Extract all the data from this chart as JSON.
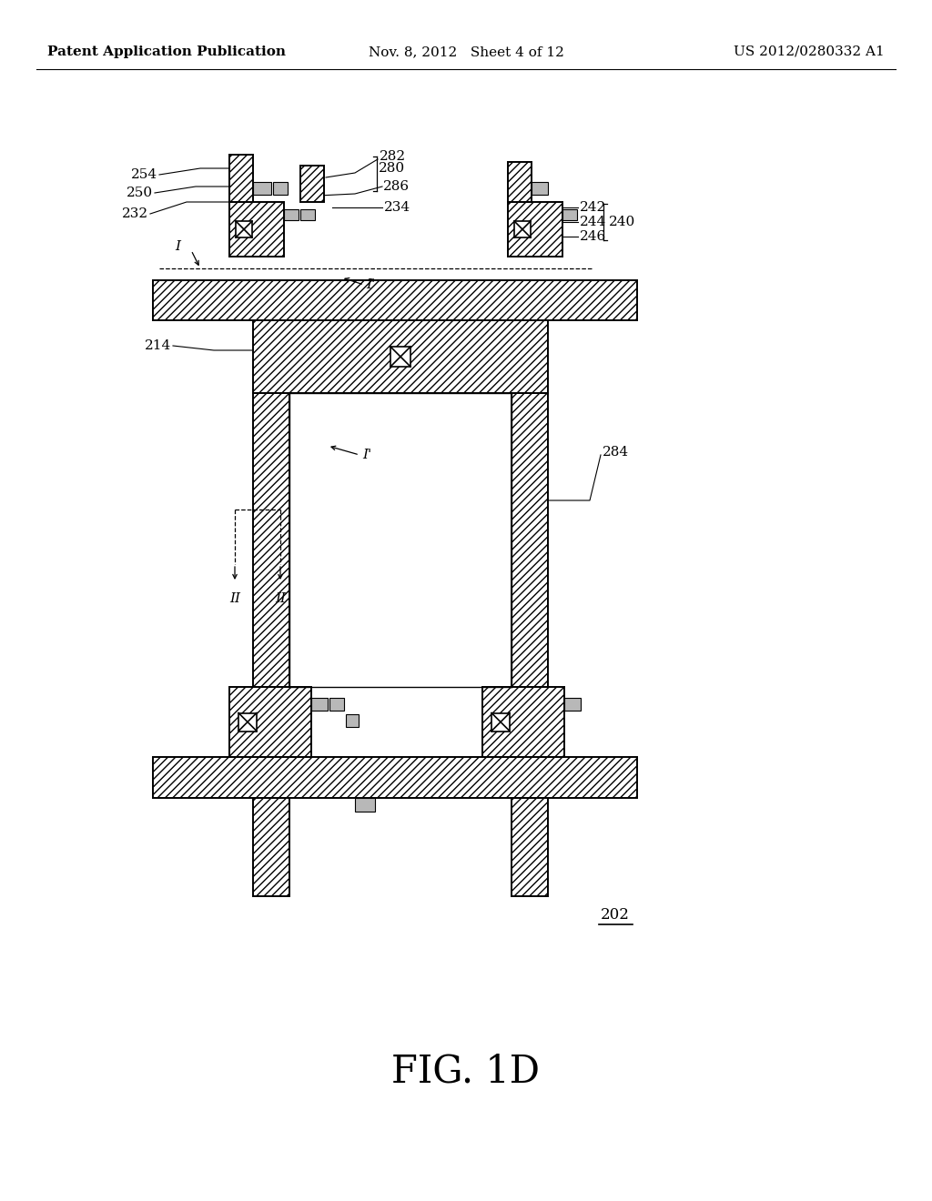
{
  "bg_color": "#ffffff",
  "line_color": "#000000",
  "header_left": "Patent Application Publication",
  "header_mid": "Nov. 8, 2012   Sheet 4 of 12",
  "header_right": "US 2012/0280332 A1",
  "fig_label": "FIG. 1D",
  "ref_202": "202",
  "ref_214": "214",
  "ref_232": "232",
  "ref_234": "234",
  "ref_240": "240",
  "ref_242": "242",
  "ref_244": "244",
  "ref_246": "246",
  "ref_250": "250",
  "ref_254": "254",
  "ref_280": "280",
  "ref_282": "282",
  "ref_284": "284",
  "ref_286": "286",
  "gray_color": "#b8b8b8",
  "hatch_dense": "////",
  "header_fontsize": 11,
  "ref_fontsize": 11,
  "fig_fontsize": 30
}
